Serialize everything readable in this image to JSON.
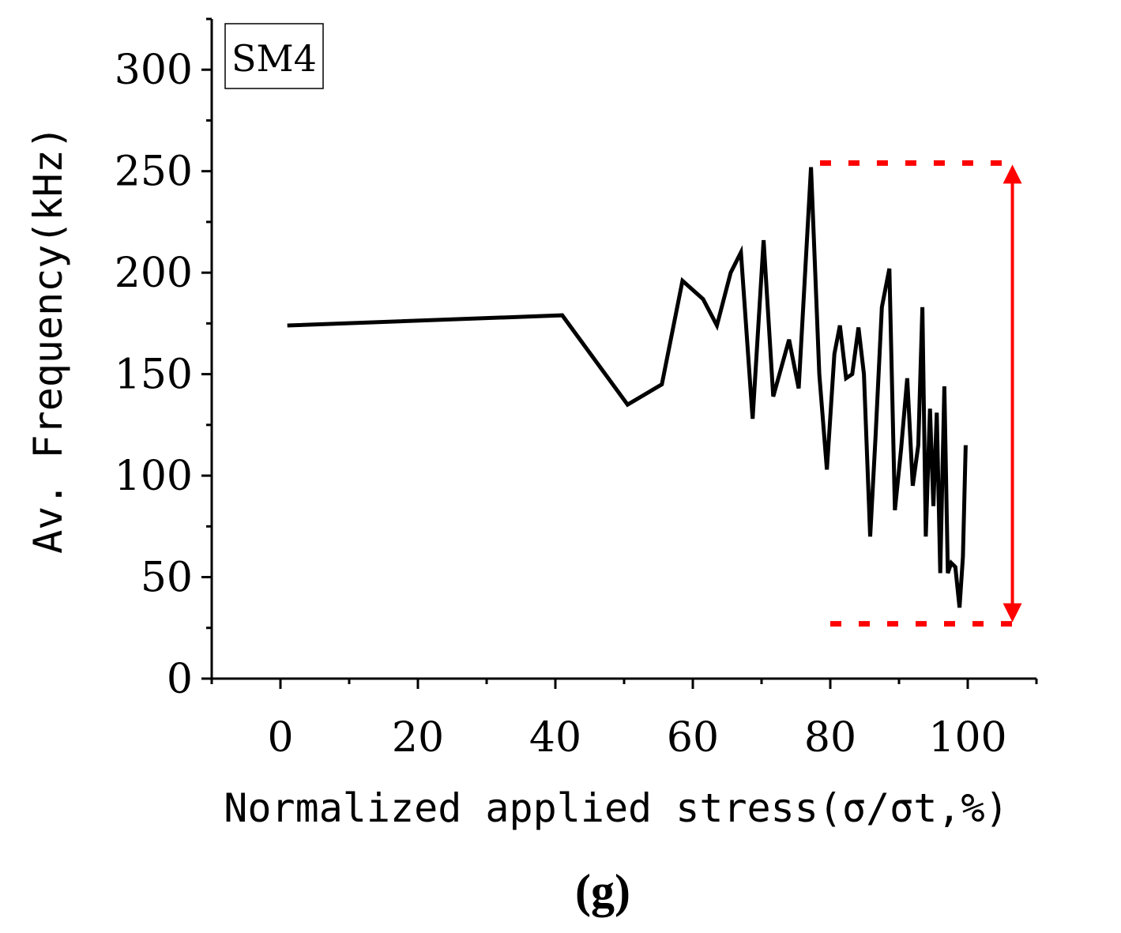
{
  "chart_data": {
    "type": "line",
    "title": "",
    "panel_label": "(g)",
    "legend_label": "SM4",
    "xlabel": "Normalized applied stress(σ/σt,%)",
    "ylabel": "Av. Frequency(kHz)",
    "xlim": [
      -10,
      110
    ],
    "ylim": [
      0,
      325
    ],
    "x_ticks": [
      0,
      20,
      40,
      60,
      80,
      100
    ],
    "y_ticks": [
      0,
      50,
      100,
      150,
      200,
      250,
      300
    ],
    "x_tick_labels": [
      "0",
      "20",
      "40",
      "60",
      "80",
      "100"
    ],
    "y_tick_labels": [
      "0",
      "50",
      "100",
      "150",
      "200",
      "250",
      "300"
    ],
    "series": [
      {
        "name": "SM4",
        "color": "#000000",
        "x": [
          1,
          41,
          50.5,
          55.5,
          58.5,
          61.5,
          63.5,
          65.5,
          67,
          68.7,
          70.3,
          71.7,
          74,
          75.4,
          77.2,
          78.4,
          79.5,
          80.6,
          81.4,
          82.3,
          83.2,
          84.1,
          84.9,
          85.8,
          86.6,
          87.5,
          88.6,
          89.4,
          90.3,
          91.2,
          92,
          92.8,
          93.4,
          93.9,
          94.5,
          95,
          95.5,
          96,
          96.6,
          97.1,
          97.6,
          98.2,
          98.8,
          99.3,
          99.7
        ],
        "y": [
          174,
          179,
          135,
          145,
          196,
          187,
          174,
          200,
          210,
          128,
          216,
          139,
          167,
          143,
          252,
          150,
          103,
          160,
          174,
          148,
          150,
          173,
          150,
          70,
          120,
          183,
          202,
          83,
          113,
          148,
          95,
          115,
          183,
          70,
          133,
          85,
          131,
          52,
          144,
          52,
          57,
          55,
          35,
          60,
          115
        ]
      }
    ],
    "annotations": {
      "range_color": "#ff0000",
      "range_x_start_top": 78.5,
      "range_x_start_bottom": 80,
      "range_x_end": 107,
      "range_arrow_x": 106.5,
      "range_y_top": 254,
      "range_y_bottom": 27
    }
  }
}
